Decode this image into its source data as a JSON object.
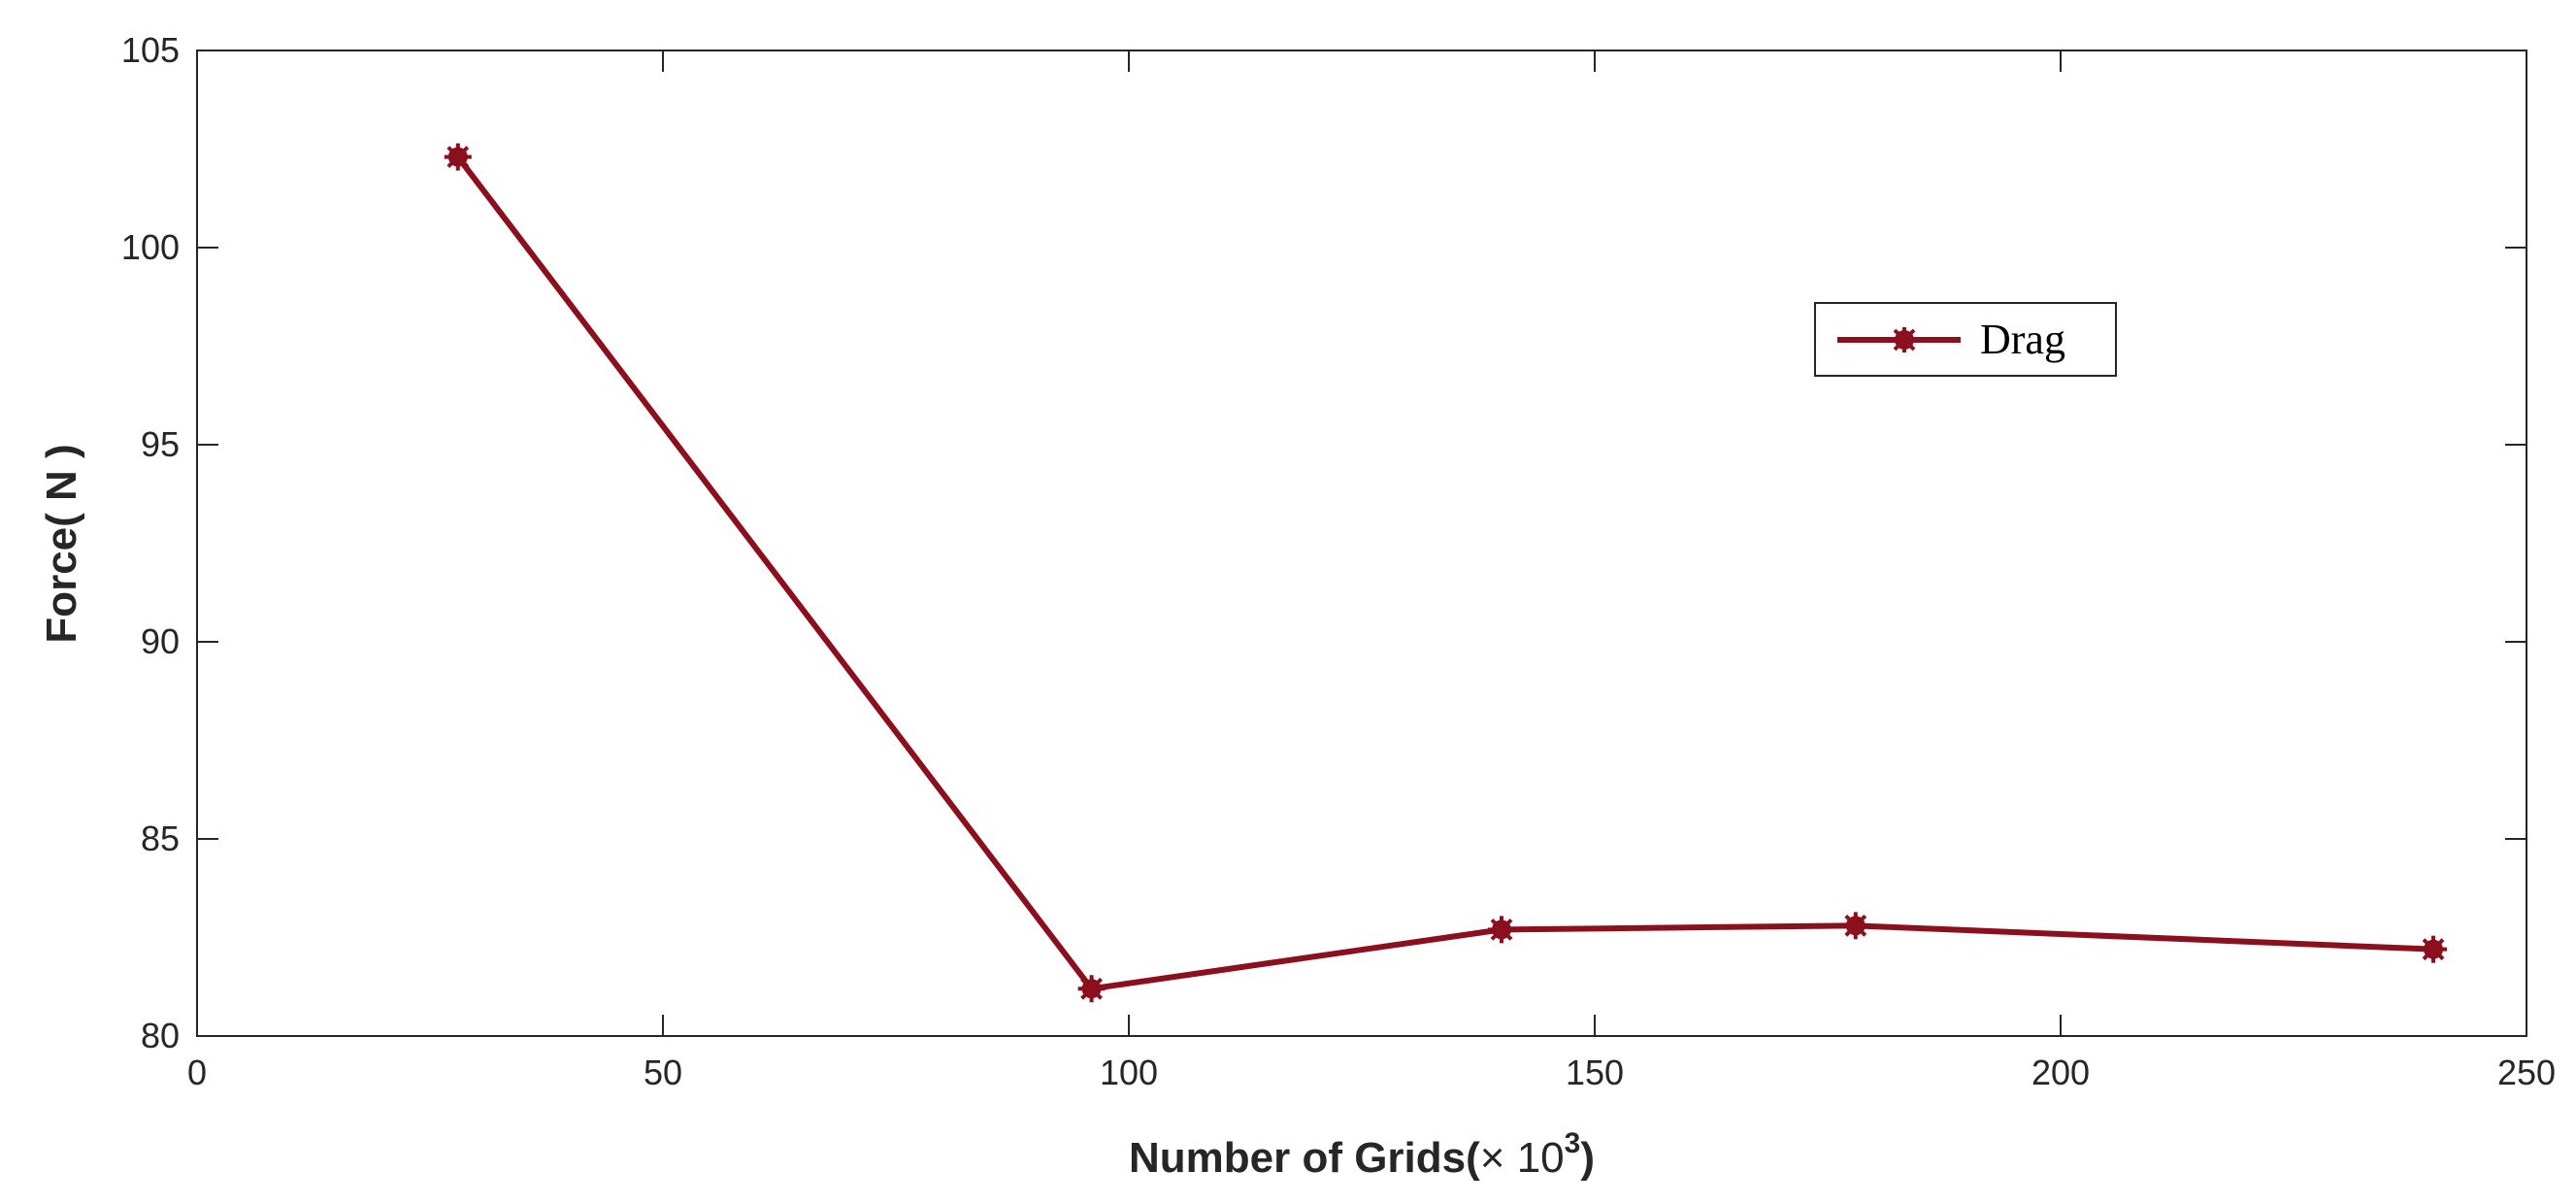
{
  "chart_data": {
    "type": "line",
    "xlabel": "Number of Grids(× 10³)",
    "xlabel_parts": {
      "main": "Number of Grids(",
      "times": "× 10",
      "exp": "3",
      "close": ")"
    },
    "ylabel": "Force( N )",
    "xlim": [
      0,
      250
    ],
    "ylim": [
      80,
      105
    ],
    "xticks": [
      0,
      50,
      100,
      150,
      200,
      250
    ],
    "yticks": [
      80,
      85,
      90,
      95,
      100,
      105
    ],
    "grid": false,
    "legend_position": "upper-right",
    "series": [
      {
        "name": "Drag",
        "color": "#8b0f1d",
        "marker": "asterisk",
        "x": [
          28,
          96,
          140,
          178,
          240
        ],
        "y": [
          102.3,
          81.2,
          82.7,
          82.8,
          82.2
        ]
      }
    ]
  }
}
